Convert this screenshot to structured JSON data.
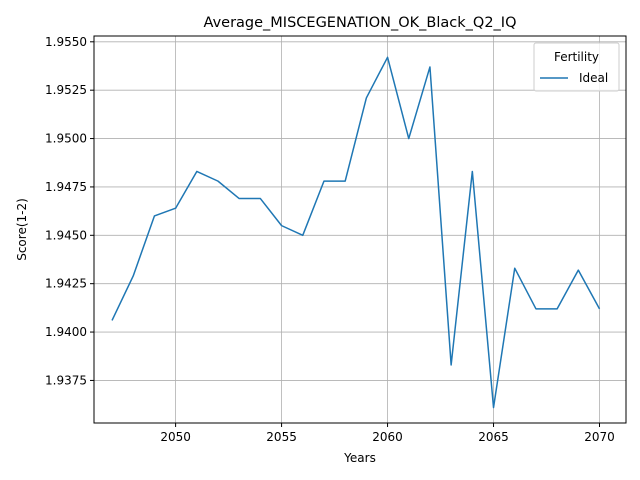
{
  "chart_data": {
    "type": "line",
    "title": "Average_MISCEGENATION_OK_Black_Q2_IQ",
    "xlabel": "Years",
    "ylabel": "Score(1-2)",
    "xlim": [
      2046.15,
      2071.25
    ],
    "ylim": [
      1.9353,
      1.9553
    ],
    "x_ticks": [
      2050,
      2055,
      2060,
      2065,
      2070
    ],
    "y_ticks": [
      1.9375,
      1.94,
      1.9425,
      1.945,
      1.9475,
      1.95,
      1.9525,
      1.955
    ],
    "x_tick_labels": [
      "2050",
      "2055",
      "2060",
      "2065",
      "2070"
    ],
    "y_tick_labels": [
      "1.9375",
      "1.9400",
      "1.9425",
      "1.9450",
      "1.9475",
      "1.9500",
      "1.9525",
      "1.9550"
    ],
    "grid": true,
    "legend": {
      "title": "Fertility",
      "placement": "top-right"
    },
    "colors": {
      "line": "#1f77b4",
      "grid": "#b0b0b0",
      "axis": "#000000"
    },
    "series": [
      {
        "name": "Ideal",
        "x": [
          2047,
          2048,
          2049,
          2050,
          2051,
          2052,
          2053,
          2054,
          2055,
          2056,
          2057,
          2058,
          2059,
          2060,
          2061,
          2062,
          2063,
          2064,
          2065,
          2066,
          2067,
          2068,
          2069,
          2070
        ],
        "values": [
          1.9406,
          1.9429,
          1.946,
          1.9464,
          1.9483,
          1.9478,
          1.9469,
          1.9469,
          1.9455,
          1.945,
          1.9478,
          1.9478,
          1.9521,
          1.9542,
          1.95,
          1.9537,
          1.9383,
          1.9483,
          1.9361,
          1.9433,
          1.9412,
          1.9412,
          1.9432,
          1.9412
        ]
      }
    ]
  }
}
